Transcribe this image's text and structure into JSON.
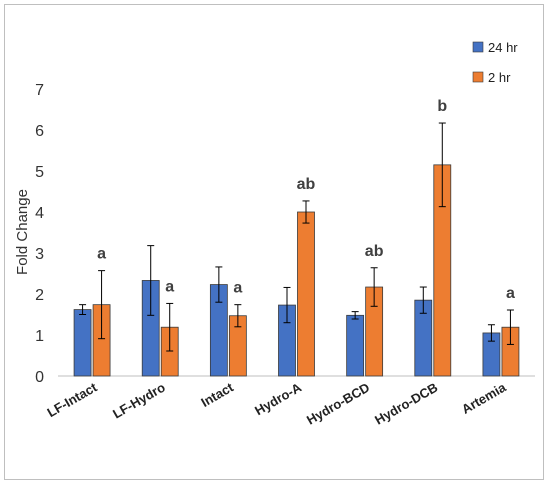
{
  "chart_data": {
    "type": "bar",
    "title": "",
    "xlabel": "",
    "ylabel": "Fold Change",
    "ylim": [
      0,
      7
    ],
    "yticks": [
      0,
      1,
      2,
      3,
      4,
      5,
      6,
      7
    ],
    "grid": false,
    "legend_position": "top-right",
    "categories": [
      "LF-Intact",
      "LF-Hydro",
      "Intact",
      "Hydro-A",
      "Hydro-BCD",
      "Hydro-DCB",
      "Artemia"
    ],
    "series": [
      {
        "name": "24 hr",
        "color": "#4472C4",
        "values": [
          1.62,
          2.33,
          2.23,
          1.73,
          1.48,
          1.85,
          1.05
        ],
        "errors": [
          0.12,
          0.85,
          0.43,
          0.43,
          0.09,
          0.32,
          0.2
        ]
      },
      {
        "name": "2 hr",
        "color": "#ED7D31",
        "values": [
          1.74,
          1.19,
          1.47,
          4.0,
          2.17,
          5.15,
          1.19
        ],
        "errors": [
          0.83,
          0.58,
          0.27,
          0.27,
          0.47,
          1.02,
          0.42
        ]
      }
    ],
    "annotations": [
      "a",
      "a",
      "a",
      "ab",
      "ab",
      "b",
      "a"
    ]
  }
}
